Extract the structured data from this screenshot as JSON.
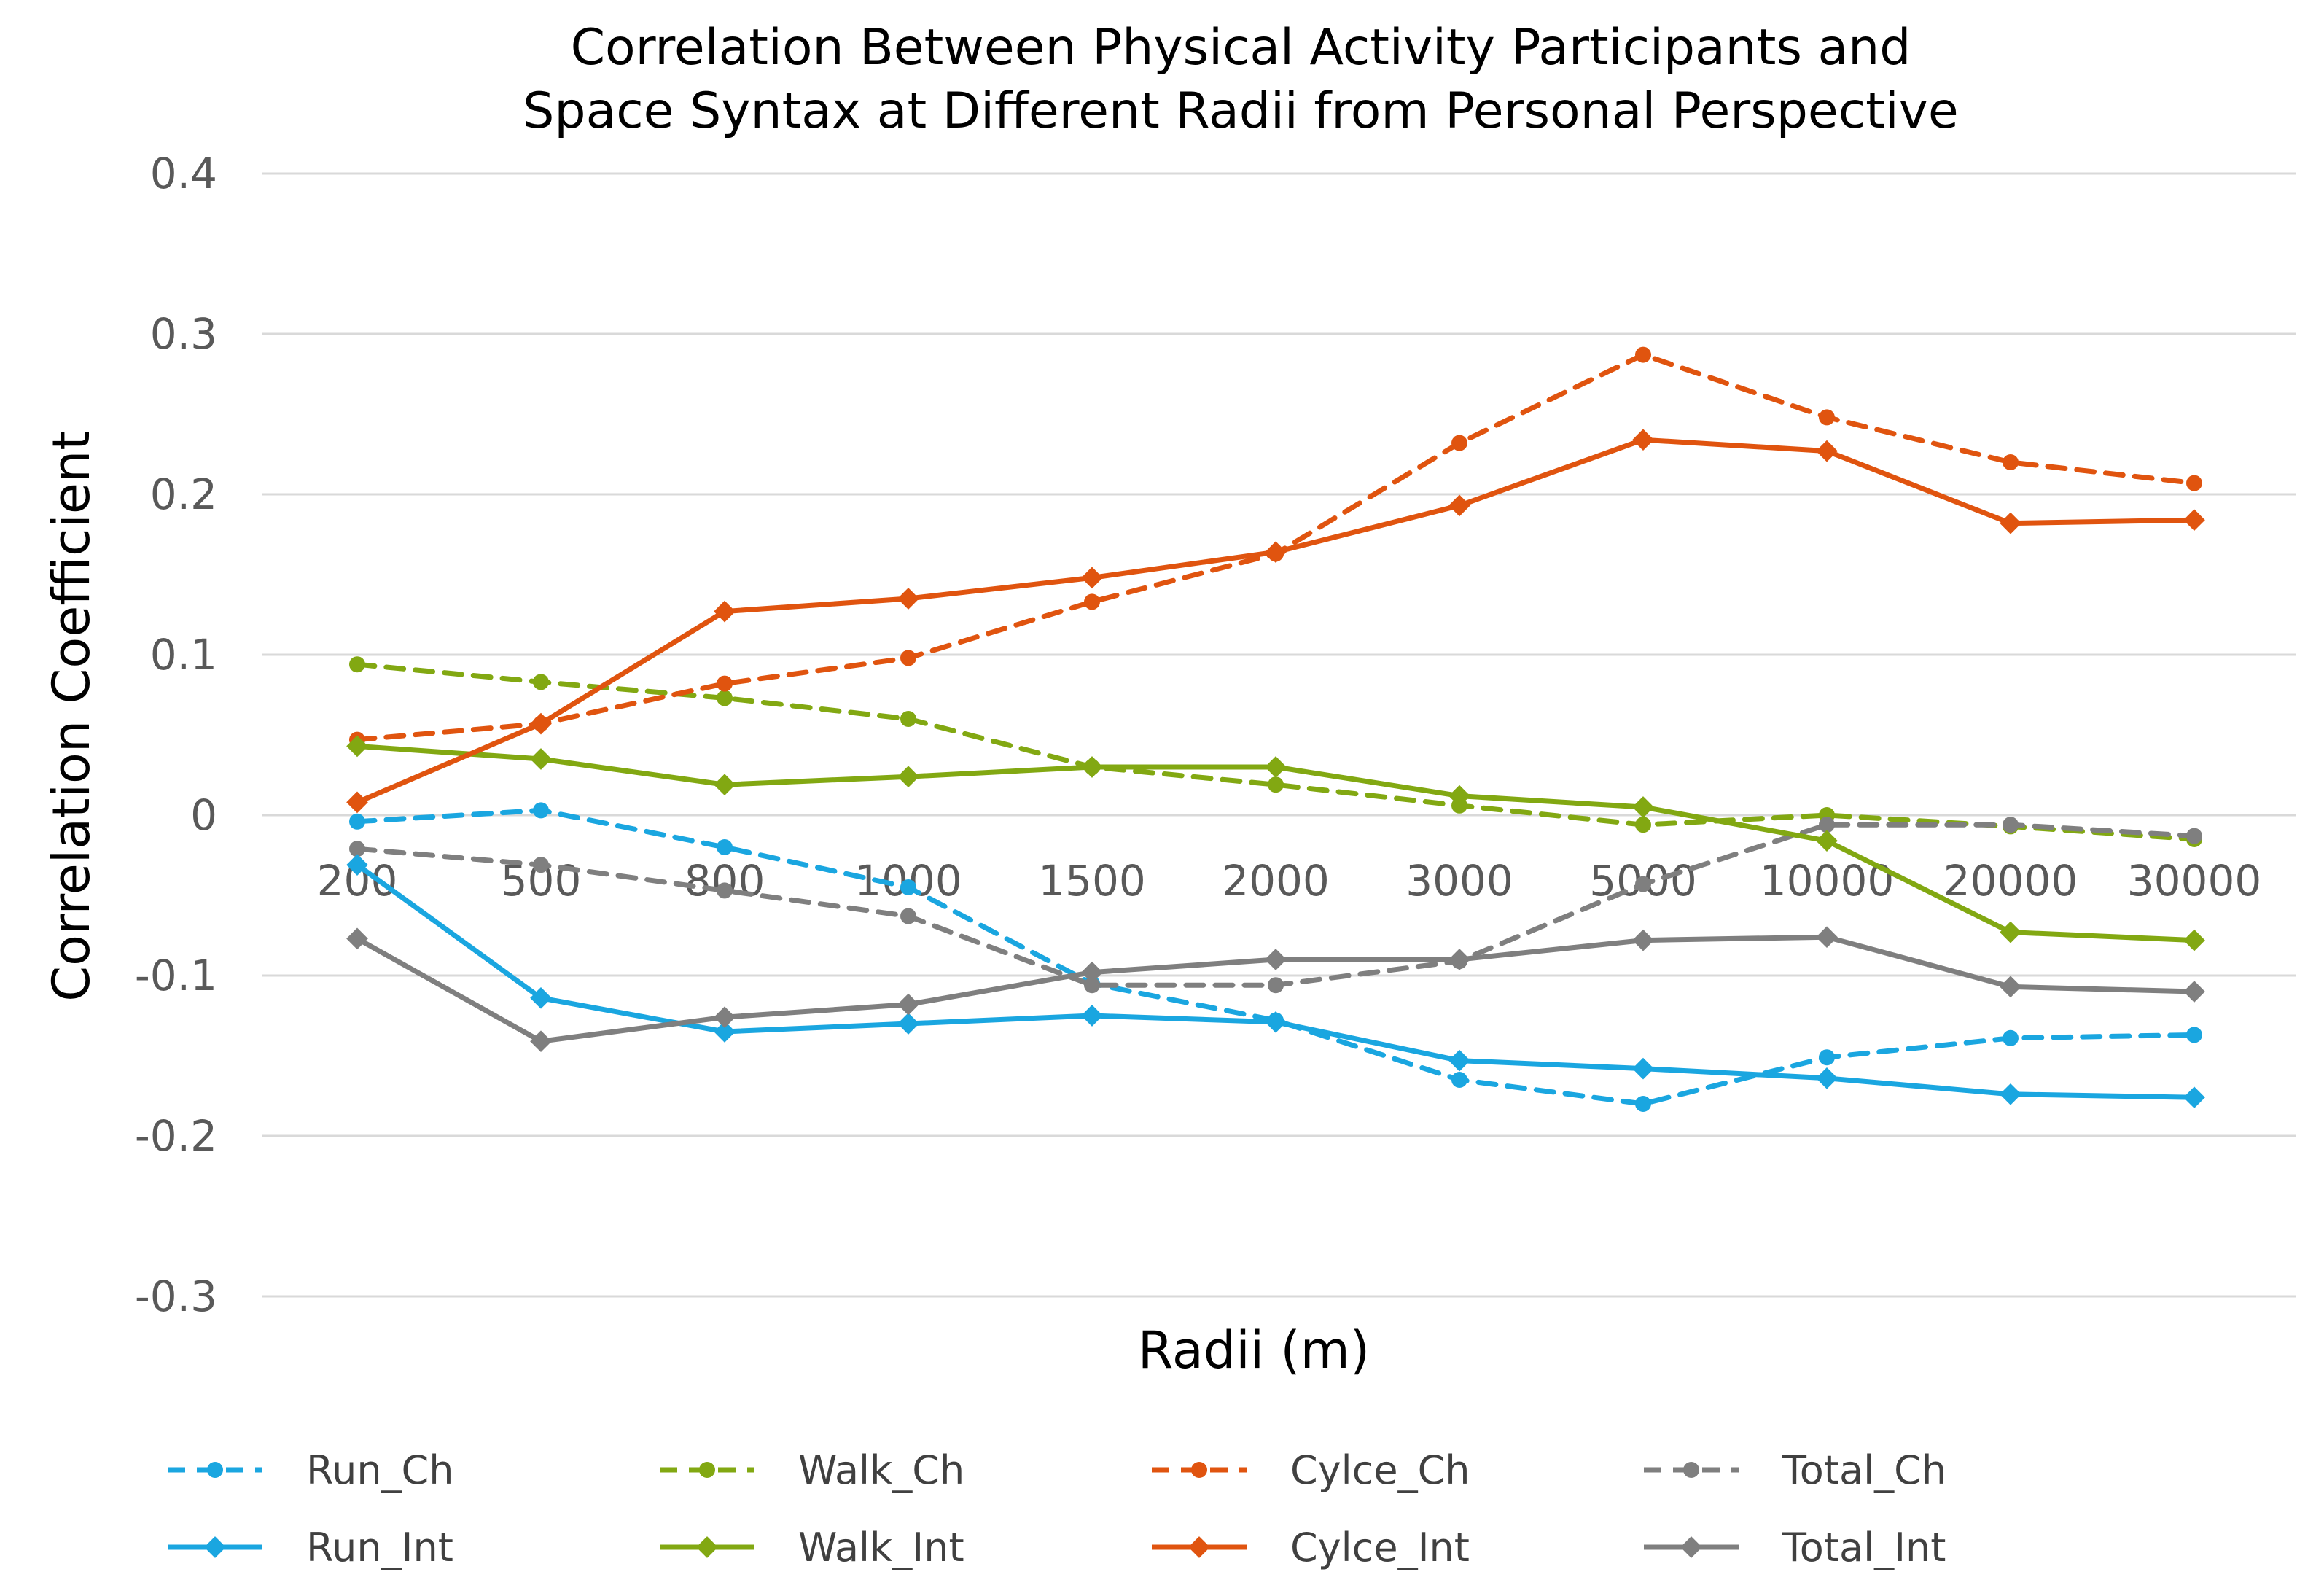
{
  "chart_data": {
    "type": "line",
    "title": [
      "Correlation Between Physical Activity Participants and",
      "Space Syntax at Different Radii from Personal Perspective"
    ],
    "xlabel": "Radii (m)",
    "ylabel": "Correlation Coefficient",
    "categories": [
      "200",
      "500",
      "800",
      "1000",
      "1500",
      "2000",
      "3000",
      "5000",
      "10000",
      "20000",
      "30000"
    ],
    "ylim": [
      -0.3,
      0.4
    ],
    "yticks": [
      0.4,
      0.3,
      0.2,
      0.1,
      0,
      -0.1,
      -0.2,
      -0.3
    ],
    "ytick_labels": [
      "0.4",
      "0.3",
      "0.2",
      "0.1",
      "0",
      "-0.1",
      "-0.2",
      "-0.3"
    ],
    "grid": true,
    "legend_position": "bottom",
    "series": [
      {
        "name": "Run_Ch",
        "color": "#1aa6e0",
        "dash": true,
        "marker": "circle",
        "values": [
          -0.004,
          0.003,
          -0.02,
          -0.045,
          -0.105,
          -0.128,
          -0.165,
          -0.18,
          -0.151,
          -0.139,
          -0.137
        ]
      },
      {
        "name": "Walk_Ch",
        "color": "#82a812",
        "dash": true,
        "marker": "circle",
        "values": [
          0.094,
          0.083,
          0.073,
          0.06,
          0.03,
          0.019,
          0.006,
          -0.006,
          0.0,
          -0.007,
          -0.015
        ]
      },
      {
        "name": "Cylce_Ch",
        "color": "#e0540f",
        "dash": true,
        "marker": "circle",
        "values": [
          0.047,
          0.057,
          0.082,
          0.098,
          0.133,
          0.163,
          0.232,
          0.287,
          0.248,
          0.22,
          0.207
        ]
      },
      {
        "name": "Total_Ch",
        "color": "#7f7f7f",
        "dash": true,
        "marker": "circle",
        "values": [
          -0.021,
          -0.031,
          -0.047,
          -0.063,
          -0.106,
          -0.106,
          -0.091,
          -0.043,
          -0.006,
          -0.006,
          -0.013
        ]
      },
      {
        "name": "Run_Int",
        "color": "#1aa6e0",
        "dash": false,
        "marker": "diamond",
        "values": [
          -0.031,
          -0.114,
          -0.135,
          -0.13,
          -0.125,
          -0.129,
          -0.153,
          -0.158,
          -0.164,
          -0.174,
          -0.176
        ]
      },
      {
        "name": "Walk_Int",
        "color": "#82a812",
        "dash": false,
        "marker": "diamond",
        "values": [
          0.043,
          0.035,
          0.019,
          0.024,
          0.03,
          0.03,
          0.012,
          0.005,
          -0.016,
          -0.073,
          -0.078
        ]
      },
      {
        "name": "Cylce_Int",
        "color": "#e0540f",
        "dash": false,
        "marker": "diamond",
        "values": [
          0.008,
          0.057,
          0.127,
          0.135,
          0.148,
          0.164,
          0.193,
          0.234,
          0.227,
          0.182,
          0.184
        ]
      },
      {
        "name": "Total_Int",
        "color": "#7f7f7f",
        "dash": false,
        "marker": "diamond",
        "values": [
          -0.077,
          -0.141,
          -0.126,
          -0.118,
          -0.098,
          -0.09,
          -0.09,
          -0.078,
          -0.076,
          -0.107,
          -0.11
        ]
      }
    ]
  }
}
